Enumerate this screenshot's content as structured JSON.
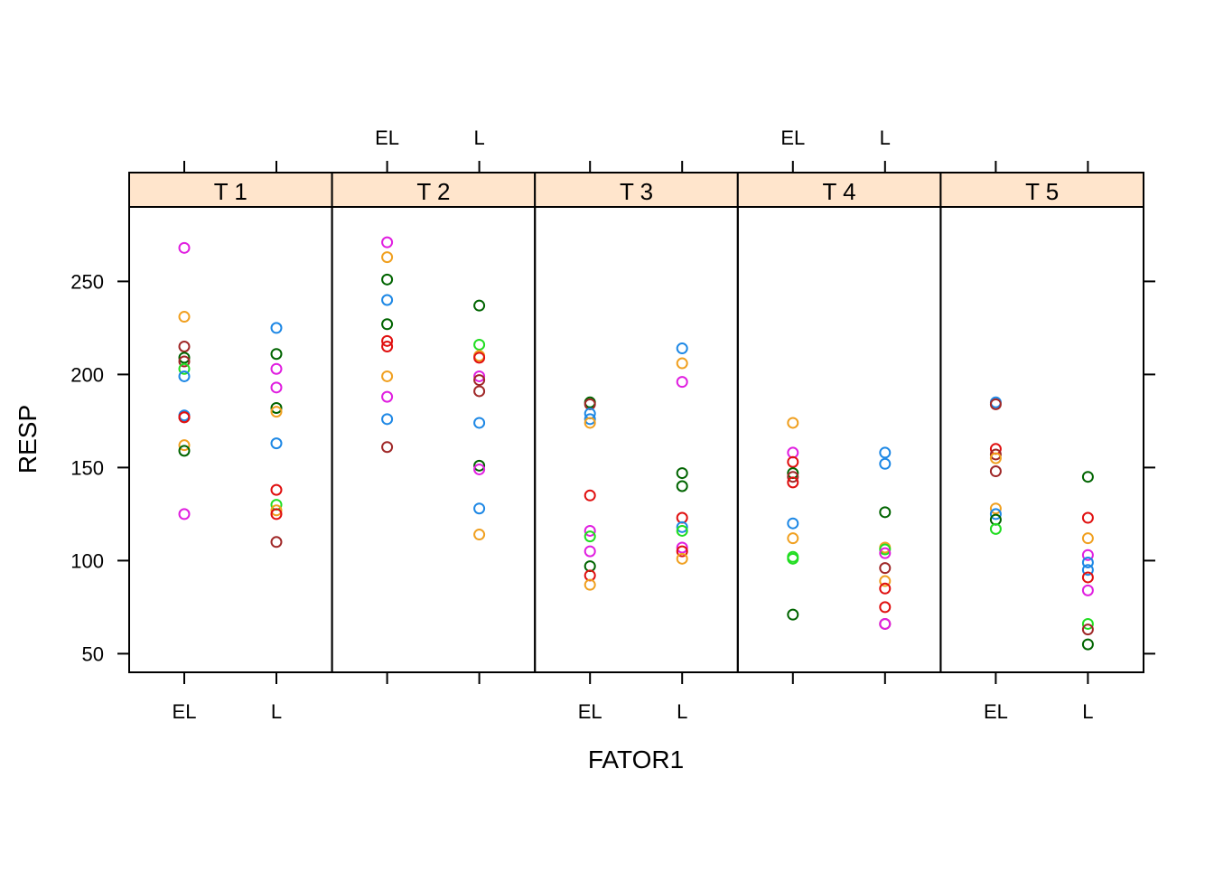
{
  "chart_data": {
    "type": "scatter",
    "xlabel": "FATOR1",
    "ylabel": "RESP",
    "x_categories": [
      "EL",
      "L"
    ],
    "ylim": [
      40,
      290
    ],
    "y_ticks": [
      50,
      100,
      150,
      200,
      250
    ],
    "panels": [
      {
        "label": "T 1",
        "points": [
          {
            "x": "EL",
            "y": 268,
            "color": "#e01fe0"
          },
          {
            "x": "EL",
            "y": 231,
            "color": "#f0a020"
          },
          {
            "x": "EL",
            "y": 215,
            "color": "#a02828"
          },
          {
            "x": "EL",
            "y": 209,
            "color": "#006400"
          },
          {
            "x": "EL",
            "y": 207,
            "color": "#a02828"
          },
          {
            "x": "EL",
            "y": 203,
            "color": "#22dd22"
          },
          {
            "x": "EL",
            "y": 199,
            "color": "#1e88e5"
          },
          {
            "x": "EL",
            "y": 178,
            "color": "#1e88e5"
          },
          {
            "x": "EL",
            "y": 177,
            "color": "#a02828"
          },
          {
            "x": "EL",
            "y": 177,
            "color": "#e01010"
          },
          {
            "x": "EL",
            "y": 162,
            "color": "#f0a020"
          },
          {
            "x": "EL",
            "y": 159,
            "color": "#006400"
          },
          {
            "x": "EL",
            "y": 125,
            "color": "#e01fe0"
          },
          {
            "x": "L",
            "y": 225,
            "color": "#1e88e5"
          },
          {
            "x": "L",
            "y": 211,
            "color": "#006400"
          },
          {
            "x": "L",
            "y": 203,
            "color": "#e01fe0"
          },
          {
            "x": "L",
            "y": 193,
            "color": "#e01fe0"
          },
          {
            "x": "L",
            "y": 182,
            "color": "#006400"
          },
          {
            "x": "L",
            "y": 180,
            "color": "#f0a020"
          },
          {
            "x": "L",
            "y": 163,
            "color": "#1e88e5"
          },
          {
            "x": "L",
            "y": 138,
            "color": "#e01010"
          },
          {
            "x": "L",
            "y": 130,
            "color": "#22dd22"
          },
          {
            "x": "L",
            "y": 127,
            "color": "#f0a020"
          },
          {
            "x": "L",
            "y": 125,
            "color": "#e01010"
          },
          {
            "x": "L",
            "y": 110,
            "color": "#a02828"
          }
        ]
      },
      {
        "label": "T 2",
        "points": [
          {
            "x": "EL",
            "y": 271,
            "color": "#e01fe0"
          },
          {
            "x": "EL",
            "y": 263,
            "color": "#f0a020"
          },
          {
            "x": "EL",
            "y": 251,
            "color": "#006400"
          },
          {
            "x": "EL",
            "y": 240,
            "color": "#1e88e5"
          },
          {
            "x": "EL",
            "y": 227,
            "color": "#006400"
          },
          {
            "x": "EL",
            "y": 218,
            "color": "#e01010"
          },
          {
            "x": "EL",
            "y": 215,
            "color": "#e01010"
          },
          {
            "x": "EL",
            "y": 199,
            "color": "#f0a020"
          },
          {
            "x": "EL",
            "y": 188,
            "color": "#e01fe0"
          },
          {
            "x": "EL",
            "y": 176,
            "color": "#1e88e5"
          },
          {
            "x": "EL",
            "y": 161,
            "color": "#a02828"
          },
          {
            "x": "L",
            "y": 237,
            "color": "#006400"
          },
          {
            "x": "L",
            "y": 216,
            "color": "#22dd22"
          },
          {
            "x": "L",
            "y": 210,
            "color": "#f0a020"
          },
          {
            "x": "L",
            "y": 209,
            "color": "#e01010"
          },
          {
            "x": "L",
            "y": 199,
            "color": "#e01fe0"
          },
          {
            "x": "L",
            "y": 197,
            "color": "#a02828"
          },
          {
            "x": "L",
            "y": 191,
            "color": "#a02828"
          },
          {
            "x": "L",
            "y": 174,
            "color": "#1e88e5"
          },
          {
            "x": "L",
            "y": 151,
            "color": "#006400"
          },
          {
            "x": "L",
            "y": 149,
            "color": "#e01fe0"
          },
          {
            "x": "L",
            "y": 128,
            "color": "#1e88e5"
          },
          {
            "x": "L",
            "y": 114,
            "color": "#f0a020"
          }
        ]
      },
      {
        "label": "T 3",
        "points": [
          {
            "x": "EL",
            "y": 185,
            "color": "#006400"
          },
          {
            "x": "EL",
            "y": 184,
            "color": "#a02828"
          },
          {
            "x": "EL",
            "y": 179,
            "color": "#1e88e5"
          },
          {
            "x": "EL",
            "y": 176,
            "color": "#1e88e5"
          },
          {
            "x": "EL",
            "y": 174,
            "color": "#f0a020"
          },
          {
            "x": "EL",
            "y": 135,
            "color": "#e01010"
          },
          {
            "x": "EL",
            "y": 116,
            "color": "#e01fe0"
          },
          {
            "x": "EL",
            "y": 113,
            "color": "#22dd22"
          },
          {
            "x": "EL",
            "y": 105,
            "color": "#e01fe0"
          },
          {
            "x": "EL",
            "y": 97,
            "color": "#006400"
          },
          {
            "x": "EL",
            "y": 92,
            "color": "#e01010"
          },
          {
            "x": "EL",
            "y": 87,
            "color": "#f0a020"
          },
          {
            "x": "L",
            "y": 214,
            "color": "#1e88e5"
          },
          {
            "x": "L",
            "y": 206,
            "color": "#f0a020"
          },
          {
            "x": "L",
            "y": 196,
            "color": "#e01fe0"
          },
          {
            "x": "L",
            "y": 147,
            "color": "#006400"
          },
          {
            "x": "L",
            "y": 140,
            "color": "#006400"
          },
          {
            "x": "L",
            "y": 123,
            "color": "#e01010"
          },
          {
            "x": "L",
            "y": 118,
            "color": "#1e88e5"
          },
          {
            "x": "L",
            "y": 116,
            "color": "#22dd22"
          },
          {
            "x": "L",
            "y": 107,
            "color": "#e01fe0"
          },
          {
            "x": "L",
            "y": 105,
            "color": "#e01010"
          },
          {
            "x": "L",
            "y": 101,
            "color": "#f0a020"
          }
        ]
      },
      {
        "label": "T 4",
        "points": [
          {
            "x": "EL",
            "y": 174,
            "color": "#f0a020"
          },
          {
            "x": "EL",
            "y": 158,
            "color": "#e01fe0"
          },
          {
            "x": "EL",
            "y": 153,
            "color": "#e01010"
          },
          {
            "x": "EL",
            "y": 147,
            "color": "#006400"
          },
          {
            "x": "EL",
            "y": 145,
            "color": "#a02828"
          },
          {
            "x": "EL",
            "y": 142,
            "color": "#e01010"
          },
          {
            "x": "EL",
            "y": 120,
            "color": "#1e88e5"
          },
          {
            "x": "EL",
            "y": 112,
            "color": "#f0a020"
          },
          {
            "x": "EL",
            "y": 102,
            "color": "#22dd22"
          },
          {
            "x": "EL",
            "y": 101,
            "color": "#22dd22"
          },
          {
            "x": "EL",
            "y": 71,
            "color": "#006400"
          },
          {
            "x": "L",
            "y": 158,
            "color": "#1e88e5"
          },
          {
            "x": "L",
            "y": 152,
            "color": "#1e88e5"
          },
          {
            "x": "L",
            "y": 126,
            "color": "#006400"
          },
          {
            "x": "L",
            "y": 107,
            "color": "#f0a020"
          },
          {
            "x": "L",
            "y": 106,
            "color": "#22dd22"
          },
          {
            "x": "L",
            "y": 104,
            "color": "#e01fe0"
          },
          {
            "x": "L",
            "y": 96,
            "color": "#a02828"
          },
          {
            "x": "L",
            "y": 89,
            "color": "#f0a020"
          },
          {
            "x": "L",
            "y": 85,
            "color": "#e01010"
          },
          {
            "x": "L",
            "y": 75,
            "color": "#e01010"
          },
          {
            "x": "L",
            "y": 66,
            "color": "#a02828"
          },
          {
            "x": "L",
            "y": 66,
            "color": "#e01fe0"
          }
        ]
      },
      {
        "label": "T 5",
        "points": [
          {
            "x": "EL",
            "y": 185,
            "color": "#1e88e5"
          },
          {
            "x": "EL",
            "y": 184,
            "color": "#a02828"
          },
          {
            "x": "EL",
            "y": 160,
            "color": "#e01010"
          },
          {
            "x": "EL",
            "y": 157,
            "color": "#a02828"
          },
          {
            "x": "EL",
            "y": 155,
            "color": "#f0a020"
          },
          {
            "x": "EL",
            "y": 148,
            "color": "#a02828"
          },
          {
            "x": "EL",
            "y": 128,
            "color": "#f0a020"
          },
          {
            "x": "EL",
            "y": 125,
            "color": "#1e88e5"
          },
          {
            "x": "EL",
            "y": 122,
            "color": "#006400"
          },
          {
            "x": "EL",
            "y": 117,
            "color": "#22dd22"
          },
          {
            "x": "L",
            "y": 145,
            "color": "#006400"
          },
          {
            "x": "L",
            "y": 123,
            "color": "#e01010"
          },
          {
            "x": "L",
            "y": 112,
            "color": "#f0a020"
          },
          {
            "x": "L",
            "y": 103,
            "color": "#e01fe0"
          },
          {
            "x": "L",
            "y": 99,
            "color": "#1e88e5"
          },
          {
            "x": "L",
            "y": 95,
            "color": "#1e88e5"
          },
          {
            "x": "L",
            "y": 91,
            "color": "#e01010"
          },
          {
            "x": "L",
            "y": 84,
            "color": "#e01fe0"
          },
          {
            "x": "L",
            "y": 66,
            "color": "#22dd22"
          },
          {
            "x": "L",
            "y": 63,
            "color": "#a02828"
          },
          {
            "x": "L",
            "y": 55,
            "color": "#006400"
          }
        ]
      }
    ],
    "colors": {
      "strip_fill": "#ffe5cc",
      "frame": "#000000"
    }
  }
}
